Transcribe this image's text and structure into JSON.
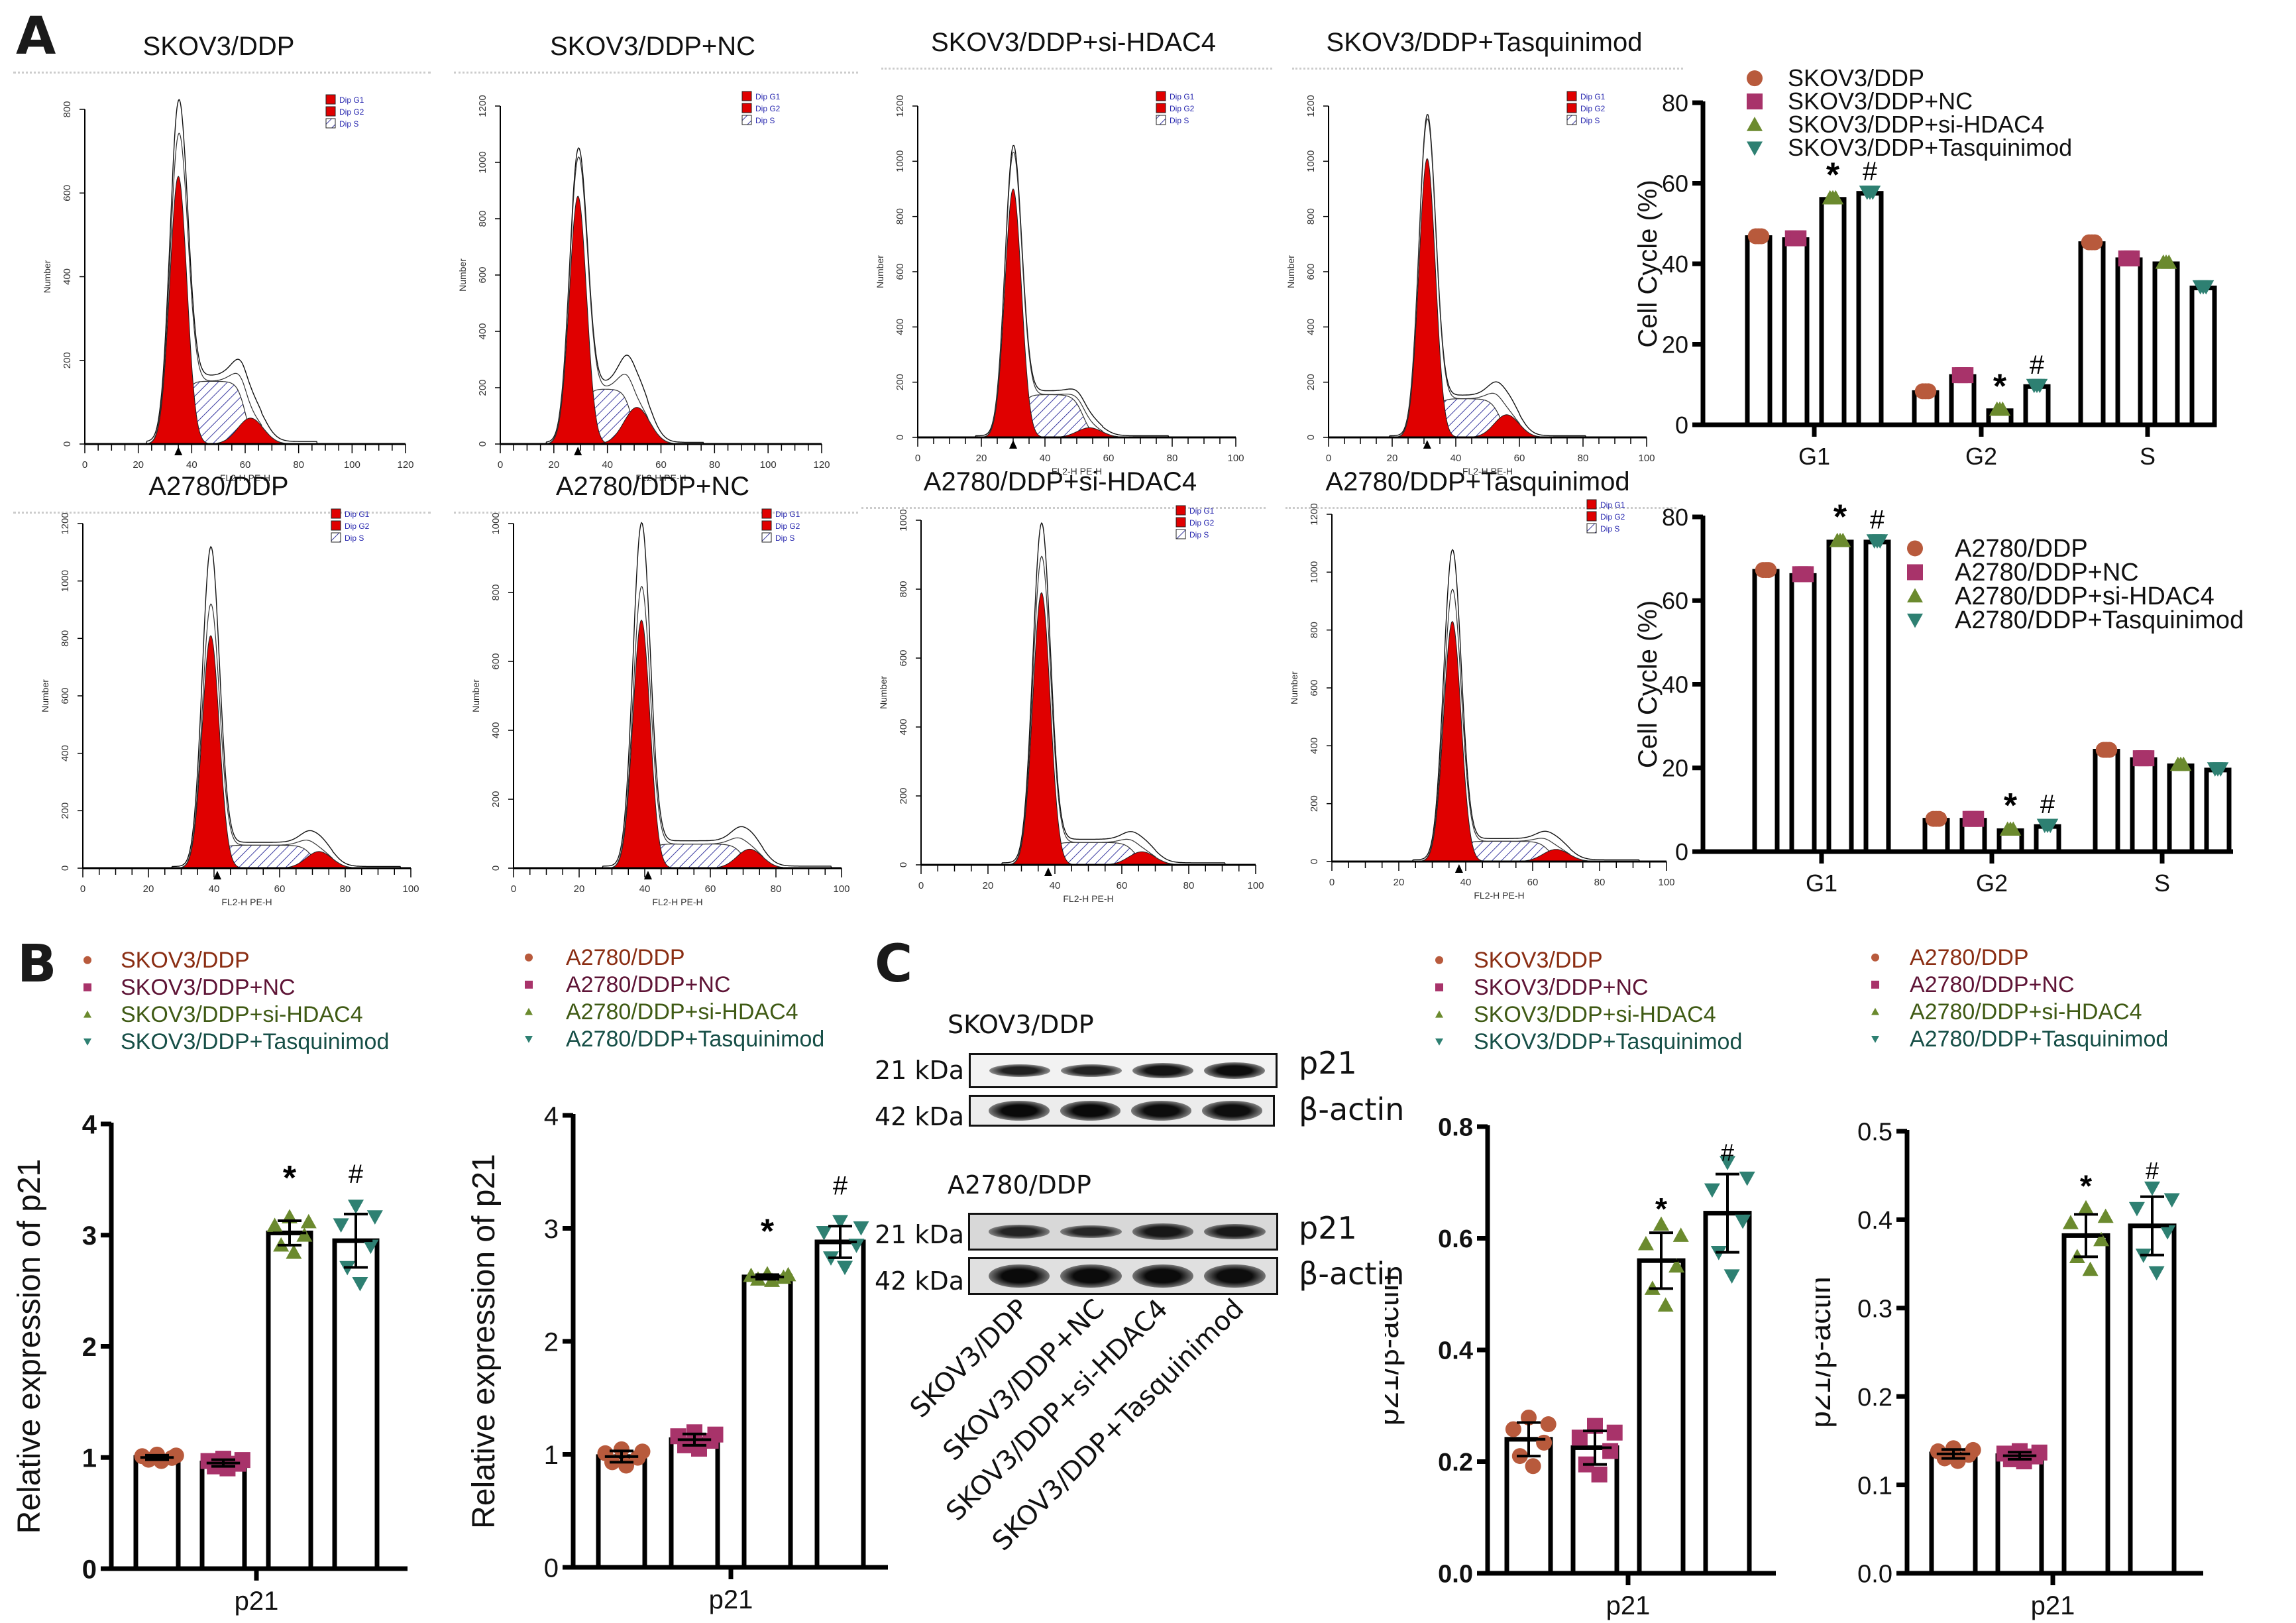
{
  "panel_letters": {
    "A": "A",
    "B": "B",
    "C": "C"
  },
  "groups_skov3": [
    "SKOV3/DDP",
    "SKOV3/DDP+NC",
    "SKOV3/DDP+si-HDAC4",
    "SKOV3/DDP+Tasquinimod"
  ],
  "groups_a2780": [
    "A2780/DDP",
    "A2780/DDP+NC",
    "A2780/DDP+si-HDAC4",
    "A2780/DDP+Tasquinimod"
  ],
  "colors": {
    "g1_marker": "#B85A3C",
    "nc_marker": "#A8336A",
    "si_marker": "#6B8A2E",
    "tas_marker": "#2E8072",
    "g1_text": "#8A2D12",
    "nc_text": "#5E1436",
    "si_text": "#3F5A14",
    "tas_text": "#174F47",
    "histogram_fill": "#E00000",
    "histogram_hatch": "#3A3AA0"
  },
  "histogram_common": {
    "ylabel": "Number",
    "xlabel": "FL2-H PE-H",
    "legend": [
      "Dip G1",
      "Dip G2",
      "Dip S"
    ]
  },
  "histograms": [
    {
      "title": "SKOV3/DDP",
      "xmax": 120,
      "xticks": [
        "0",
        "20",
        "40",
        "60",
        "80",
        "100",
        "120"
      ],
      "ymax": 800,
      "yticks": [
        "0",
        "200",
        "400",
        "600",
        "800"
      ],
      "g1_peak_x": 35,
      "g1_peak_y": 640,
      "total_peak_y": 790,
      "s_level": 150,
      "g2_peak_x": 62,
      "g2_peak_y": 62,
      "marker_x": 35
    },
    {
      "title": "SKOV3/DDP+NC",
      "xmax": 120,
      "xticks": [
        "0",
        "20",
        "40",
        "60",
        "80",
        "100",
        "120"
      ],
      "ymax": 1200,
      "yticks": [
        "0",
        "200",
        "400",
        "600",
        "800",
        "1000",
        "1200"
      ],
      "g1_peak_x": 29,
      "g1_peak_y": 880,
      "total_peak_y": 1010,
      "s_level": 195,
      "g2_peak_x": 51,
      "g2_peak_y": 130,
      "marker_x": 29
    },
    {
      "title": "SKOV3/DDP+si-HDAC4",
      "xmax": 100,
      "xticks": [
        "0",
        "20",
        "40",
        "60",
        "80",
        "100"
      ],
      "ymax": 1200,
      "yticks": [
        "0",
        "200",
        "400",
        "600",
        "800",
        "1000",
        "1200"
      ],
      "g1_peak_x": 30,
      "g1_peak_y": 900,
      "total_peak_y": 1025,
      "s_level": 155,
      "g2_peak_x": 54,
      "g2_peak_y": 35,
      "marker_x": 30
    },
    {
      "title": "SKOV3/DDP+Tasquinimod",
      "xmax": 100,
      "xticks": [
        "0",
        "20",
        "40",
        "60",
        "80",
        "100"
      ],
      "ymax": 1200,
      "yticks": [
        "0",
        "200",
        "400",
        "600",
        "800",
        "1000",
        "1200"
      ],
      "g1_peak_x": 31,
      "g1_peak_y": 1010,
      "total_peak_y": 1140,
      "s_level": 140,
      "g2_peak_x": 56,
      "g2_peak_y": 82,
      "marker_x": 31
    },
    {
      "title": "A2780/DDP",
      "xmax": 100,
      "xticks": [
        "0",
        "20",
        "40",
        "60",
        "80",
        "100"
      ],
      "ymax": 1200,
      "yticks": [
        "0",
        "200",
        "400",
        "600",
        "800",
        "1000",
        "1200"
      ],
      "g1_peak_x": 39,
      "g1_peak_y": 810,
      "total_peak_y": 1100,
      "s_level": 80,
      "g2_peak_x": 72,
      "g2_peak_y": 58,
      "marker_x": 41
    },
    {
      "title": "A2780/DDP+NC",
      "xmax": 100,
      "xticks": [
        "0",
        "20",
        "40",
        "60",
        "80",
        "100"
      ],
      "ymax": 1000,
      "yticks": [
        "0",
        "200",
        "400",
        "600",
        "800",
        "1000"
      ],
      "g1_peak_x": 39,
      "g1_peak_y": 720,
      "total_peak_y": 985,
      "s_level": 70,
      "g2_peak_x": 72,
      "g2_peak_y": 55,
      "marker_x": 41
    },
    {
      "title": "A2780/DDP+si-HDAC4",
      "xmax": 100,
      "xticks": [
        "0",
        "20",
        "40",
        "60",
        "80",
        "100"
      ],
      "ymax": 1000,
      "yticks": [
        "0",
        "200",
        "400",
        "600",
        "800",
        "1000"
      ],
      "g1_peak_x": 36,
      "g1_peak_y": 790,
      "total_peak_y": 975,
      "s_level": 65,
      "g2_peak_x": 66,
      "g2_peak_y": 38,
      "marker_x": 38
    },
    {
      "title": "A2780/DDP+Tasquinimod",
      "xmax": 100,
      "xticks": [
        "0",
        "20",
        "40",
        "60",
        "80",
        "100"
      ],
      "ymax": 1200,
      "yticks": [
        "0",
        "200",
        "400",
        "600",
        "800",
        "1000",
        "1200"
      ],
      "g1_peak_x": 36,
      "g1_peak_y": 830,
      "total_peak_y": 1060,
      "s_level": 70,
      "g2_peak_x": 67,
      "g2_peak_y": 42,
      "marker_x": 38
    }
  ],
  "chart_data": [
    {
      "id": "cellcycle-skov3",
      "type": "bar",
      "title": "",
      "ylabel": "Cell Cycle (%)",
      "xlabel": "",
      "ylim": [
        0,
        80
      ],
      "yticks": [
        "0",
        "20",
        "40",
        "60",
        "80"
      ],
      "categories": [
        "G1",
        "G2",
        "S"
      ],
      "legend": "top",
      "series": [
        {
          "name": "SKOV3/DDP",
          "marker": "circle",
          "values": [
            46.5,
            8,
            45
          ]
        },
        {
          "name": "SKOV3/DDP+NC",
          "marker": "square",
          "values": [
            46,
            12,
            41
          ]
        },
        {
          "name": "SKOV3/DDP+si-HDAC4",
          "marker": "triangle-up",
          "values": [
            56,
            3.5,
            40
          ]
        },
        {
          "name": "SKOV3/DDP+Tasquinimod",
          "marker": "triangle-down",
          "values": [
            57.5,
            9.5,
            34
          ]
        }
      ],
      "annotations": [
        {
          "category": "G1",
          "series": 2,
          "text": "*"
        },
        {
          "category": "G1",
          "series": 3,
          "text": "#"
        },
        {
          "category": "G2",
          "series": 2,
          "text": "*"
        },
        {
          "category": "G2",
          "series": 3,
          "text": "#"
        }
      ]
    },
    {
      "id": "cellcycle-a2780",
      "type": "bar",
      "title": "",
      "ylabel": "Cell Cycle (%)",
      "xlabel": "",
      "ylim": [
        0,
        80
      ],
      "yticks": [
        "0",
        "20",
        "40",
        "60",
        "80"
      ],
      "categories": [
        "G1",
        "G2",
        "S"
      ],
      "legend": "right",
      "series": [
        {
          "name": "A2780/DDP",
          "marker": "circle",
          "values": [
            67,
            7.5,
            24
          ]
        },
        {
          "name": "A2780/DDP+NC",
          "marker": "square",
          "values": [
            66,
            7.5,
            22
          ]
        },
        {
          "name": "A2780/DDP+si-HDAC4",
          "marker": "triangle-up",
          "values": [
            74,
            5,
            20.5
          ]
        },
        {
          "name": "A2780/DDP+Tasquinimod",
          "marker": "triangle-down",
          "values": [
            74,
            6,
            19.5
          ]
        }
      ],
      "annotations": [
        {
          "category": "G1",
          "series": 2,
          "text": "*"
        },
        {
          "category": "G1",
          "series": 3,
          "text": "#"
        },
        {
          "category": "G2",
          "series": 2,
          "text": "*"
        },
        {
          "category": "G2",
          "series": 3,
          "text": "#"
        }
      ]
    },
    {
      "id": "qpcr-skov3",
      "type": "bar",
      "title": "",
      "ylabel": "Relative expression of p21",
      "xlabel": "",
      "ylim": [
        0,
        4
      ],
      "yticks": [
        "0",
        "1",
        "2",
        "3",
        "4"
      ],
      "categories": [
        "p21"
      ],
      "legend": "top",
      "series": [
        {
          "name": "SKOV3/DDP",
          "marker": "circle",
          "values": [
            1.0
          ],
          "sd": 0.02
        },
        {
          "name": "SKOV3/DDP+NC",
          "marker": "square",
          "values": [
            0.95
          ],
          "sd": 0.03
        },
        {
          "name": "SKOV3/DDP+si-HDAC4",
          "marker": "triangle-up",
          "values": [
            3.02
          ],
          "sd": 0.11
        },
        {
          "name": "SKOV3/DDP+Tasquinimod",
          "marker": "triangle-down",
          "values": [
            2.95
          ],
          "sd": 0.24
        }
      ],
      "annotations": [
        {
          "series": 2,
          "text": "*"
        },
        {
          "series": 3,
          "text": "#"
        }
      ]
    },
    {
      "id": "qpcr-a2780",
      "type": "bar",
      "title": "",
      "ylabel": "Relative expression of p21",
      "xlabel": "",
      "ylim": [
        0,
        4
      ],
      "yticks": [
        "0",
        "1",
        "2",
        "3",
        "4"
      ],
      "categories": [
        "p21"
      ],
      "legend": "top",
      "series": [
        {
          "name": "A2780/DDP",
          "marker": "circle",
          "values": [
            0.98
          ],
          "sd": 0.05
        },
        {
          "name": "A2780/DDP+NC",
          "marker": "square",
          "values": [
            1.13
          ],
          "sd": 0.05
        },
        {
          "name": "A2780/DDP+si-HDAC4",
          "marker": "triangle-up",
          "values": [
            2.57
          ],
          "sd": 0.02
        },
        {
          "name": "A2780/DDP+Tasquinimod",
          "marker": "triangle-down",
          "values": [
            2.88
          ],
          "sd": 0.14
        }
      ],
      "annotations": [
        {
          "series": 2,
          "text": "*"
        },
        {
          "series": 3,
          "text": "#"
        }
      ]
    },
    {
      "id": "wb-skov3",
      "type": "bar",
      "title": "",
      "ylabel": "p21/β-actin",
      "xlabel": "",
      "ylim": [
        0,
        0.8
      ],
      "yticks": [
        "0.0",
        "0.2",
        "0.4",
        "0.6",
        "0.8"
      ],
      "categories": [
        "p21"
      ],
      "legend": "top",
      "series": [
        {
          "name": "SKOV3/DDP",
          "marker": "circle",
          "values": [
            0.24
          ],
          "sd": 0.03
        },
        {
          "name": "SKOV3/DDP+NC",
          "marker": "square",
          "values": [
            0.225
          ],
          "sd": 0.03
        },
        {
          "name": "SKOV3/DDP+si-HDAC4",
          "marker": "triangle-up",
          "values": [
            0.56
          ],
          "sd": 0.05
        },
        {
          "name": "SKOV3/DDP+Tasquinimod",
          "marker": "triangle-down",
          "values": [
            0.645
          ],
          "sd": 0.07
        }
      ],
      "annotations": [
        {
          "series": 2,
          "text": "*"
        },
        {
          "series": 3,
          "text": "#"
        }
      ]
    },
    {
      "id": "wb-a2780",
      "type": "bar",
      "title": "",
      "ylabel": "p21/β-actin",
      "xlabel": "",
      "ylim": [
        0,
        0.5
      ],
      "yticks": [
        "0.0",
        "0.1",
        "0.2",
        "0.3",
        "0.4",
        "0.5"
      ],
      "categories": [
        "p21"
      ],
      "legend": "top",
      "series": [
        {
          "name": "A2780/DDP",
          "marker": "circle",
          "values": [
            0.135
          ],
          "sd": 0.005
        },
        {
          "name": "A2780/DDP+NC",
          "marker": "square",
          "values": [
            0.133
          ],
          "sd": 0.004
        },
        {
          "name": "A2780/DDP+si-HDAC4",
          "marker": "triangle-up",
          "values": [
            0.382
          ],
          "sd": 0.024
        },
        {
          "name": "A2780/DDP+Tasquinimod",
          "marker": "triangle-down",
          "values": [
            0.393
          ],
          "sd": 0.033
        }
      ],
      "annotations": [
        {
          "series": 2,
          "text": "*"
        },
        {
          "series": 3,
          "text": "#"
        }
      ]
    }
  ],
  "western_blot": {
    "blocks": [
      {
        "cell_line": "SKOV3/DDP",
        "rows": [
          {
            "kda": "21 kDa",
            "protein": "p21",
            "intensities": [
              0.55,
              0.5,
              0.8,
              0.95
            ]
          },
          {
            "kda": "42 kDa",
            "protein": "β-actin",
            "intensities": [
              1.0,
              1.0,
              0.95,
              0.92
            ]
          }
        ]
      },
      {
        "cell_line": "A2780/DDP",
        "rows": [
          {
            "kda": "21 kDa",
            "protein": "p21",
            "intensities": [
              0.5,
              0.45,
              0.75,
              0.72
            ]
          },
          {
            "kda": "42 kDa",
            "protein": "β-actin",
            "intensities": [
              1.0,
              0.98,
              0.98,
              0.95
            ]
          }
        ]
      }
    ],
    "lane_labels": [
      "SKOV3/DDP",
      "SKOV3/DDP+NC",
      "SKOV3/DDP+si-HDAC4",
      "SKOV3/DDP+Tasquinimod"
    ]
  }
}
